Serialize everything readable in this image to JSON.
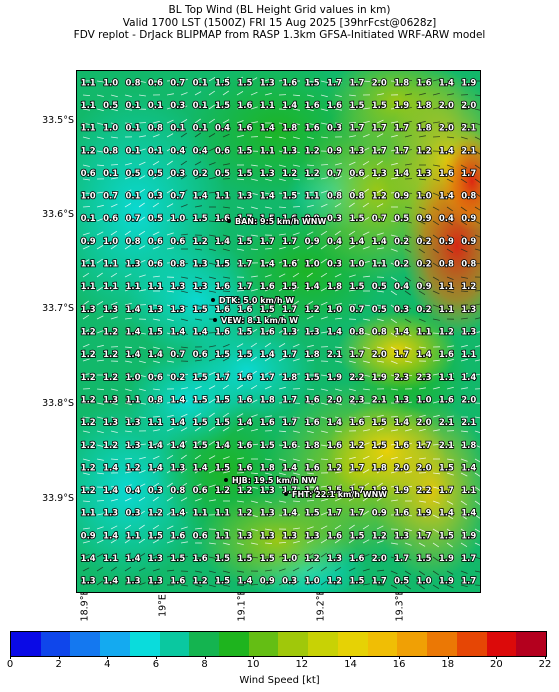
{
  "title": {
    "line1": "BL Top Wind (BL Height Grid values in km)",
    "line2": "Valid 1700 LST (1500Z) FRI 15 Aug 2025 [39hrFcst@0628z]",
    "line3": "FDV replot - DrJack BLIPMAP from RASP 1.3km GFSA-Initiated WRF-ARW model"
  },
  "lat_labels": [
    "33.5°S",
    "33.6°S",
    "33.7°S",
    "33.8°S",
    "33.9°S"
  ],
  "lon_labels": [
    "18.9°E",
    "19°E",
    "19.1°E",
    "19.2°E",
    "19.3°E"
  ],
  "sites": [
    {
      "name": "BAN: 9.5 km/h WNW"
    },
    {
      "name": "DTK: 5.0 km/h W"
    },
    {
      "name": "VEW: 8.1 km/h W"
    },
    {
      "name": "HJB: 19.5 km/h NW"
    },
    {
      "name": "FHT: 22.1 km/h WNW"
    }
  ],
  "colorbar": {
    "label": "Wind Speed [kt]",
    "ticks": [
      "0",
      "2",
      "4",
      "6",
      "8",
      "10",
      "12",
      "14",
      "16",
      "18",
      "20",
      "22"
    ],
    "colors": [
      "#0a0ae6",
      "#0f46eb",
      "#1478f0",
      "#14aaf0",
      "#0adcdc",
      "#0ac8a0",
      "#14b450",
      "#1eb41e",
      "#64be14",
      "#a0c80a",
      "#c8d205",
      "#e6d205",
      "#f0be05",
      "#f0a005",
      "#eb7805",
      "#e64605",
      "#dc0a0a",
      "#b4001e"
    ]
  },
  "grid_values": [
    [
      "1.1",
      "1.0",
      "0.8",
      "0.6",
      "0.7",
      "0.1",
      "1.5",
      "1.5",
      "1.3",
      "1.6",
      "1.5",
      "1.7",
      "1.7",
      "2.0",
      "1.8",
      "1.6",
      "1.4",
      "1.9"
    ],
    [
      "1.1",
      "0.5",
      "0.1",
      "0.1",
      "0.3",
      "0.1",
      "1.5",
      "1.6",
      "1.1",
      "1.4",
      "1.6",
      "1.6",
      "1.5",
      "1.5",
      "1.9",
      "1.8",
      "2.0",
      "2.0"
    ],
    [
      "1.1",
      "1.0",
      "0.1",
      "0.8",
      "0.1",
      "0.1",
      "0.4",
      "1.6",
      "1.4",
      "1.8",
      "1.6",
      "0.3",
      "1.7",
      "1.7",
      "1.7",
      "1.8",
      "2.0",
      "2.1"
    ],
    [
      "1.2",
      "0.8",
      "0.1",
      "0.1",
      "0.4",
      "0.4",
      "0.6",
      "1.5",
      "1.1",
      "1.3",
      "1.2",
      "0.9",
      "1.3",
      "1.7",
      "1.7",
      "1.2",
      "1.4",
      "2.1"
    ],
    [
      "0.6",
      "0.1",
      "0.5",
      "0.5",
      "0.3",
      "0.2",
      "0.5",
      "1.5",
      "1.3",
      "1.2",
      "1.2",
      "0.7",
      "0.6",
      "1.3",
      "1.4",
      "1.3",
      "1.6",
      "1.7"
    ],
    [
      "1.0",
      "0.7",
      "0.1",
      "0.3",
      "0.7",
      "1.4",
      "1.1",
      "1.3",
      "1.4",
      "1.5",
      "1.1",
      "0.8",
      "0.8",
      "1.2",
      "0.9",
      "1.0",
      "1.4",
      "0.8"
    ],
    [
      "0.1",
      "0.6",
      "0.7",
      "0.5",
      "1.0",
      "1.5",
      "1.6",
      "1.7",
      "1.5",
      "1.6",
      "0.9",
      "0.3",
      "1.5",
      "0.7",
      "0.5",
      "0.9",
      "0.4",
      "0.9"
    ],
    [
      "0.9",
      "1.0",
      "0.8",
      "0.6",
      "0.6",
      "1.2",
      "1.4",
      "1.5",
      "1.7",
      "1.7",
      "0.9",
      "0.4",
      "1.4",
      "1.4",
      "0.2",
      "0.2",
      "0.9",
      "0.9"
    ],
    [
      "1.1",
      "1.1",
      "1.3",
      "0.6",
      "0.8",
      "1.3",
      "1.5",
      "1.7",
      "1.4",
      "1.6",
      "1.0",
      "0.3",
      "1.0",
      "1.1",
      "0.2",
      "0.2",
      "0.8",
      "0.8"
    ],
    [
      "1.1",
      "1.1",
      "1.1",
      "1.1",
      "1.3",
      "1.3",
      "1.6",
      "1.7",
      "1.6",
      "1.5",
      "1.4",
      "1.8",
      "1.5",
      "0.5",
      "0.4",
      "0.9",
      "1.1",
      "1.2"
    ],
    [
      "1.3",
      "1.3",
      "1.4",
      "1.3",
      "1.3",
      "1.5",
      "1.6",
      "1.6",
      "1.5",
      "1.7",
      "1.2",
      "1.0",
      "0.7",
      "0.5",
      "0.3",
      "0.2",
      "1.1",
      "1.3"
    ],
    [
      "1.2",
      "1.2",
      "1.4",
      "1.5",
      "1.4",
      "1.4",
      "1.6",
      "1.5",
      "1.6",
      "1.3",
      "1.3",
      "1.4",
      "0.8",
      "0.8",
      "1.4",
      "1.1",
      "1.2",
      "1.3"
    ],
    [
      "1.2",
      "1.2",
      "1.4",
      "1.4",
      "0.7",
      "0.6",
      "1.5",
      "1.5",
      "1.4",
      "1.7",
      "1.8",
      "2.1",
      "1.7",
      "2.0",
      "1.7",
      "1.4",
      "1.6",
      "1.1"
    ],
    [
      "1.2",
      "1.2",
      "1.0",
      "0.6",
      "0.2",
      "1.5",
      "1.7",
      "1.6",
      "1.7",
      "1.8",
      "1.5",
      "1.9",
      "2.2",
      "1.9",
      "2.3",
      "2.3",
      "1.1",
      "1.4"
    ],
    [
      "1.2",
      "1.3",
      "1.1",
      "0.8",
      "1.4",
      "1.5",
      "1.5",
      "1.6",
      "1.8",
      "1.7",
      "1.6",
      "2.0",
      "2.3",
      "2.1",
      "1.3",
      "1.0",
      "1.6",
      "2.0"
    ],
    [
      "1.2",
      "1.3",
      "1.3",
      "1.1",
      "1.4",
      "1.5",
      "1.5",
      "1.4",
      "1.6",
      "1.7",
      "1.6",
      "1.4",
      "1.6",
      "1.5",
      "1.4",
      "2.0",
      "2.1",
      "2.1"
    ],
    [
      "1.2",
      "1.2",
      "1.3",
      "1.4",
      "1.4",
      "1.5",
      "1.4",
      "1.6",
      "1.5",
      "1.6",
      "1.8",
      "1.6",
      "1.2",
      "1.5",
      "1.6",
      "1.7",
      "2.1",
      "1.8"
    ],
    [
      "1.2",
      "1.4",
      "1.2",
      "1.4",
      "1.3",
      "1.4",
      "1.5",
      "1.6",
      "1.8",
      "1.4",
      "1.6",
      "1.2",
      "1.7",
      "1.8",
      "2.0",
      "2.0",
      "1.5",
      "1.4"
    ],
    [
      "1.2",
      "1.4",
      "0.4",
      "0.3",
      "0.8",
      "0.6",
      "1.2",
      "1.2",
      "1.3",
      "1.7",
      "1.4",
      "1.5",
      "1.7",
      "1.8",
      "1.9",
      "2.2",
      "1.7",
      "1.1"
    ],
    [
      "1.1",
      "1.3",
      "0.3",
      "1.2",
      "1.4",
      "1.1",
      "1.1",
      "1.2",
      "1.3",
      "1.4",
      "1.5",
      "1.7",
      "1.7",
      "0.9",
      "1.6",
      "1.9",
      "1.4",
      "1.4"
    ],
    [
      "0.9",
      "1.4",
      "1.1",
      "1.5",
      "1.6",
      "0.6",
      "1.1",
      "1.3",
      "1.3",
      "1.3",
      "1.3",
      "1.6",
      "1.5",
      "1.2",
      "1.3",
      "1.7",
      "1.5",
      "1.9"
    ],
    [
      "1.4",
      "1.1",
      "1.4",
      "1.3",
      "1.5",
      "1.6",
      "1.5",
      "1.5",
      "1.5",
      "1.0",
      "1.2",
      "1.3",
      "1.6",
      "2.0",
      "1.7",
      "1.5",
      "1.9",
      "1.7"
    ],
    [
      "1.3",
      "1.4",
      "1.3",
      "1.3",
      "1.6",
      "1.2",
      "1.5",
      "1.4",
      "0.9",
      "0.3",
      "1.0",
      "1.2",
      "1.5",
      "1.7",
      "0.5",
      "1.0",
      "1.9",
      "1.7"
    ]
  ]
}
